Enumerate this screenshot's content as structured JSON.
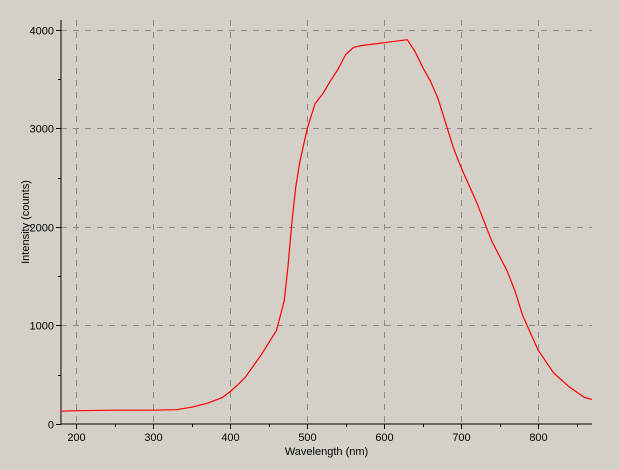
{
  "chart_data": {
    "type": "line",
    "title": "",
    "xlabel": "Wavelength (nm)",
    "ylabel": "Intensity (counts)",
    "xlim": [
      180,
      870
    ],
    "ylim": [
      0,
      4100
    ],
    "x_ticks": [
      200,
      300,
      400,
      500,
      600,
      700,
      800
    ],
    "y_ticks": [
      0,
      1000,
      2000,
      3000,
      4000
    ],
    "x_tick_labels": [
      "200",
      "300",
      "400",
      "500",
      "600",
      "700",
      "800"
    ],
    "y_tick_labels": [
      "0",
      "1000",
      "2000",
      "3000",
      "4000"
    ],
    "grid": true,
    "grid_style": "dashed",
    "colors": {
      "background": "#d4d0c8",
      "series": "#ff0000",
      "grid": "#8a8a8a",
      "axis": "#000000"
    },
    "series": [
      {
        "color": "#ff0000",
        "x": [
          180,
          200,
          250,
          300,
          330,
          350,
          370,
          390,
          400,
          410,
          420,
          440,
          460,
          470,
          475,
          480,
          485,
          490,
          500,
          510,
          520,
          530,
          540,
          550,
          560,
          570,
          580,
          600,
          620,
          630,
          640,
          650,
          660,
          670,
          680,
          690,
          700,
          720,
          740,
          750,
          760,
          770,
          780,
          800,
          820,
          840,
          860,
          870
        ],
        "y": [
          130,
          135,
          140,
          140,
          145,
          170,
          210,
          270,
          330,
          400,
          480,
          700,
          950,
          1250,
          1600,
          2050,
          2400,
          2650,
          3000,
          3250,
          3350,
          3480,
          3600,
          3750,
          3820,
          3840,
          3850,
          3870,
          3890,
          3900,
          3780,
          3620,
          3480,
          3300,
          3050,
          2800,
          2600,
          2250,
          1850,
          1700,
          1550,
          1350,
          1100,
          750,
          520,
          380,
          270,
          250
        ]
      }
    ]
  }
}
